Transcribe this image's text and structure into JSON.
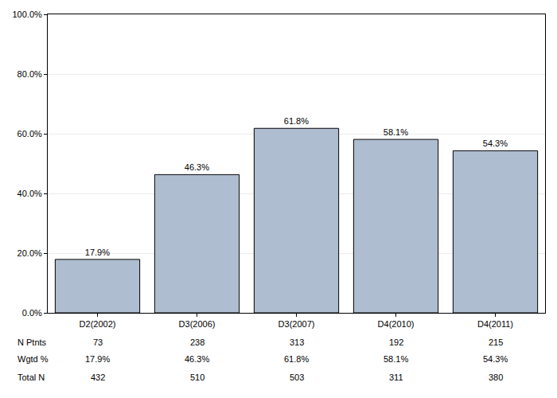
{
  "chart_data": {
    "type": "bar",
    "categories": [
      "D2(2002)",
      "D3(2006)",
      "D3(2007)",
      "D4(2010)",
      "D4(2011)"
    ],
    "values": [
      17.9,
      46.3,
      61.8,
      58.1,
      54.3
    ],
    "value_labels": [
      "17.9%",
      "46.3%",
      "61.8%",
      "58.1%",
      "54.3%"
    ],
    "data_labels": true,
    "color": "#aebdd0",
    "ylim": [
      0,
      100
    ],
    "yticks": [
      {
        "value": 0,
        "label": "0.0%"
      },
      {
        "value": 20,
        "label": "20.0%"
      },
      {
        "value": 40,
        "label": "40.0%"
      },
      {
        "value": 60,
        "label": "60.0%"
      },
      {
        "value": 80,
        "label": "80.0%"
      },
      {
        "value": 100,
        "label": "100.0%"
      }
    ],
    "grid": true,
    "table": {
      "rows": [
        {
          "label": "N Ptnts",
          "values": [
            73,
            238,
            313,
            192,
            215
          ]
        },
        {
          "label": "Wgtd %",
          "values": [
            17.9,
            46.3,
            61.8,
            58.1,
            54.3
          ],
          "value_labels": [
            "17.9%",
            "46.3%",
            "61.8%",
            "58.1%",
            "54.3%"
          ]
        },
        {
          "label": "Total N",
          "values": [
            432,
            510,
            503,
            311,
            380
          ]
        }
      ]
    }
  }
}
